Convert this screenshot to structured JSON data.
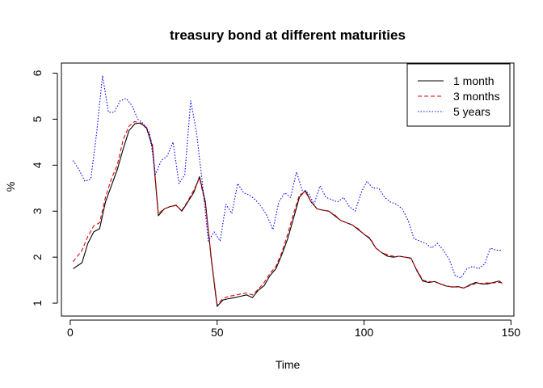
{
  "chart_data": {
    "type": "line",
    "title": "treasury bond at different maturities",
    "xlabel": "Time",
    "ylabel": "%",
    "xlim": [
      -3,
      151
    ],
    "ylim": [
      0.72,
      6.22
    ],
    "xticks": [
      0,
      50,
      100,
      150
    ],
    "yticks": [
      1,
      2,
      3,
      4,
      5,
      6
    ],
    "grid": false,
    "legend_position": "top-right",
    "series": [
      {
        "name": "1 month",
        "color": "#000000",
        "dash": "solid",
        "x": [
          1,
          4,
          6,
          8,
          10,
          12,
          14,
          16,
          18,
          20,
          22,
          24,
          26,
          28,
          30,
          32,
          34,
          36,
          38,
          40,
          42,
          44,
          46,
          48,
          50,
          52,
          54,
          56,
          58,
          60,
          62,
          64,
          66,
          68,
          70,
          72,
          74,
          76,
          78,
          80,
          82,
          84,
          86,
          88,
          90,
          92,
          94,
          96,
          98,
          100,
          102,
          104,
          106,
          108,
          110,
          112,
          114,
          116,
          118,
          120,
          122,
          124,
          126,
          128,
          130,
          132,
          134,
          136,
          138,
          140,
          142,
          144,
          146,
          147
        ],
        "values": [
          1.75,
          1.88,
          2.3,
          2.55,
          2.62,
          3.2,
          3.55,
          3.9,
          4.35,
          4.75,
          4.9,
          4.92,
          4.8,
          4.4,
          2.9,
          3.05,
          3.1,
          3.13,
          3.0,
          3.2,
          3.4,
          3.75,
          3.2,
          1.95,
          0.93,
          1.07,
          1.1,
          1.12,
          1.15,
          1.18,
          1.12,
          1.28,
          1.38,
          1.6,
          1.75,
          2.05,
          2.4,
          2.85,
          3.3,
          3.45,
          3.2,
          3.05,
          3.02,
          3.0,
          2.9,
          2.8,
          2.75,
          2.7,
          2.6,
          2.5,
          2.4,
          2.2,
          2.1,
          2.02,
          2.0,
          2.02,
          2.0,
          1.98,
          1.7,
          1.48,
          1.45,
          1.47,
          1.42,
          1.37,
          1.35,
          1.36,
          1.33,
          1.4,
          1.45,
          1.42,
          1.42,
          1.45,
          1.48,
          1.43
        ]
      },
      {
        "name": "3 months",
        "color": "#dd0000",
        "dash": "dashed",
        "x": [
          1,
          4,
          6,
          8,
          10,
          12,
          14,
          16,
          18,
          20,
          22,
          24,
          26,
          28,
          30,
          32,
          34,
          36,
          38,
          40,
          42,
          44,
          46,
          48,
          50,
          52,
          54,
          56,
          58,
          60,
          62,
          64,
          66,
          68,
          70,
          72,
          74,
          76,
          78,
          80,
          82,
          84,
          86,
          88,
          90,
          92,
          94,
          96,
          98,
          100,
          102,
          104,
          106,
          108,
          110,
          112,
          114,
          116,
          118,
          120,
          122,
          124,
          126,
          128,
          130,
          132,
          134,
          136,
          138,
          140,
          142,
          144,
          146,
          147
        ],
        "values": [
          1.9,
          2.15,
          2.45,
          2.68,
          2.75,
          3.3,
          3.7,
          4.0,
          4.55,
          4.85,
          4.95,
          4.9,
          4.82,
          4.45,
          2.95,
          3.05,
          3.1,
          3.12,
          3.02,
          3.22,
          3.45,
          3.72,
          3.15,
          2.0,
          0.97,
          1.1,
          1.15,
          1.17,
          1.2,
          1.22,
          1.18,
          1.3,
          1.45,
          1.65,
          1.8,
          2.1,
          2.5,
          2.95,
          3.35,
          3.42,
          3.2,
          3.05,
          3.02,
          3.0,
          2.92,
          2.8,
          2.75,
          2.7,
          2.62,
          2.5,
          2.42,
          2.2,
          2.1,
          2.05,
          2.02,
          2.02,
          2.0,
          1.97,
          1.72,
          1.5,
          1.47,
          1.46,
          1.42,
          1.38,
          1.35,
          1.35,
          1.33,
          1.38,
          1.43,
          1.43,
          1.44,
          1.44,
          1.45,
          1.44
        ]
      },
      {
        "name": "5 years",
        "color": "#0000ff",
        "dash": "dotted",
        "x": [
          1,
          3,
          5,
          7,
          9,
          11,
          13,
          15,
          17,
          19,
          21,
          23,
          25,
          27,
          29,
          31,
          33,
          35,
          37,
          39,
          41,
          43,
          45,
          47,
          49,
          51,
          53,
          55,
          57,
          59,
          61,
          63,
          65,
          67,
          69,
          71,
          73,
          75,
          77,
          79,
          81,
          83,
          85,
          87,
          89,
          91,
          93,
          95,
          97,
          99,
          101,
          103,
          105,
          107,
          109,
          111,
          113,
          115,
          117,
          119,
          121,
          123,
          125,
          127,
          129,
          131,
          133,
          135,
          137,
          139,
          141,
          143,
          145,
          147
        ],
        "values": [
          4.1,
          3.9,
          3.65,
          3.7,
          4.7,
          5.95,
          5.15,
          5.15,
          5.4,
          5.45,
          5.3,
          5.0,
          4.9,
          4.7,
          3.8,
          4.1,
          4.2,
          4.5,
          3.6,
          3.8,
          5.4,
          4.7,
          3.6,
          2.35,
          2.55,
          2.35,
          3.15,
          2.95,
          3.6,
          3.4,
          3.35,
          3.25,
          3.1,
          2.9,
          2.6,
          3.2,
          3.4,
          3.3,
          3.85,
          3.45,
          3.4,
          3.15,
          3.55,
          3.3,
          3.25,
          3.2,
          3.3,
          3.1,
          3.0,
          3.4,
          3.65,
          3.5,
          3.5,
          3.3,
          3.2,
          3.15,
          3.05,
          2.8,
          2.4,
          2.35,
          2.3,
          2.2,
          2.3,
          2.15,
          1.95,
          1.6,
          1.55,
          1.75,
          1.8,
          1.75,
          1.85,
          2.2,
          2.15,
          2.15
        ]
      }
    ]
  }
}
